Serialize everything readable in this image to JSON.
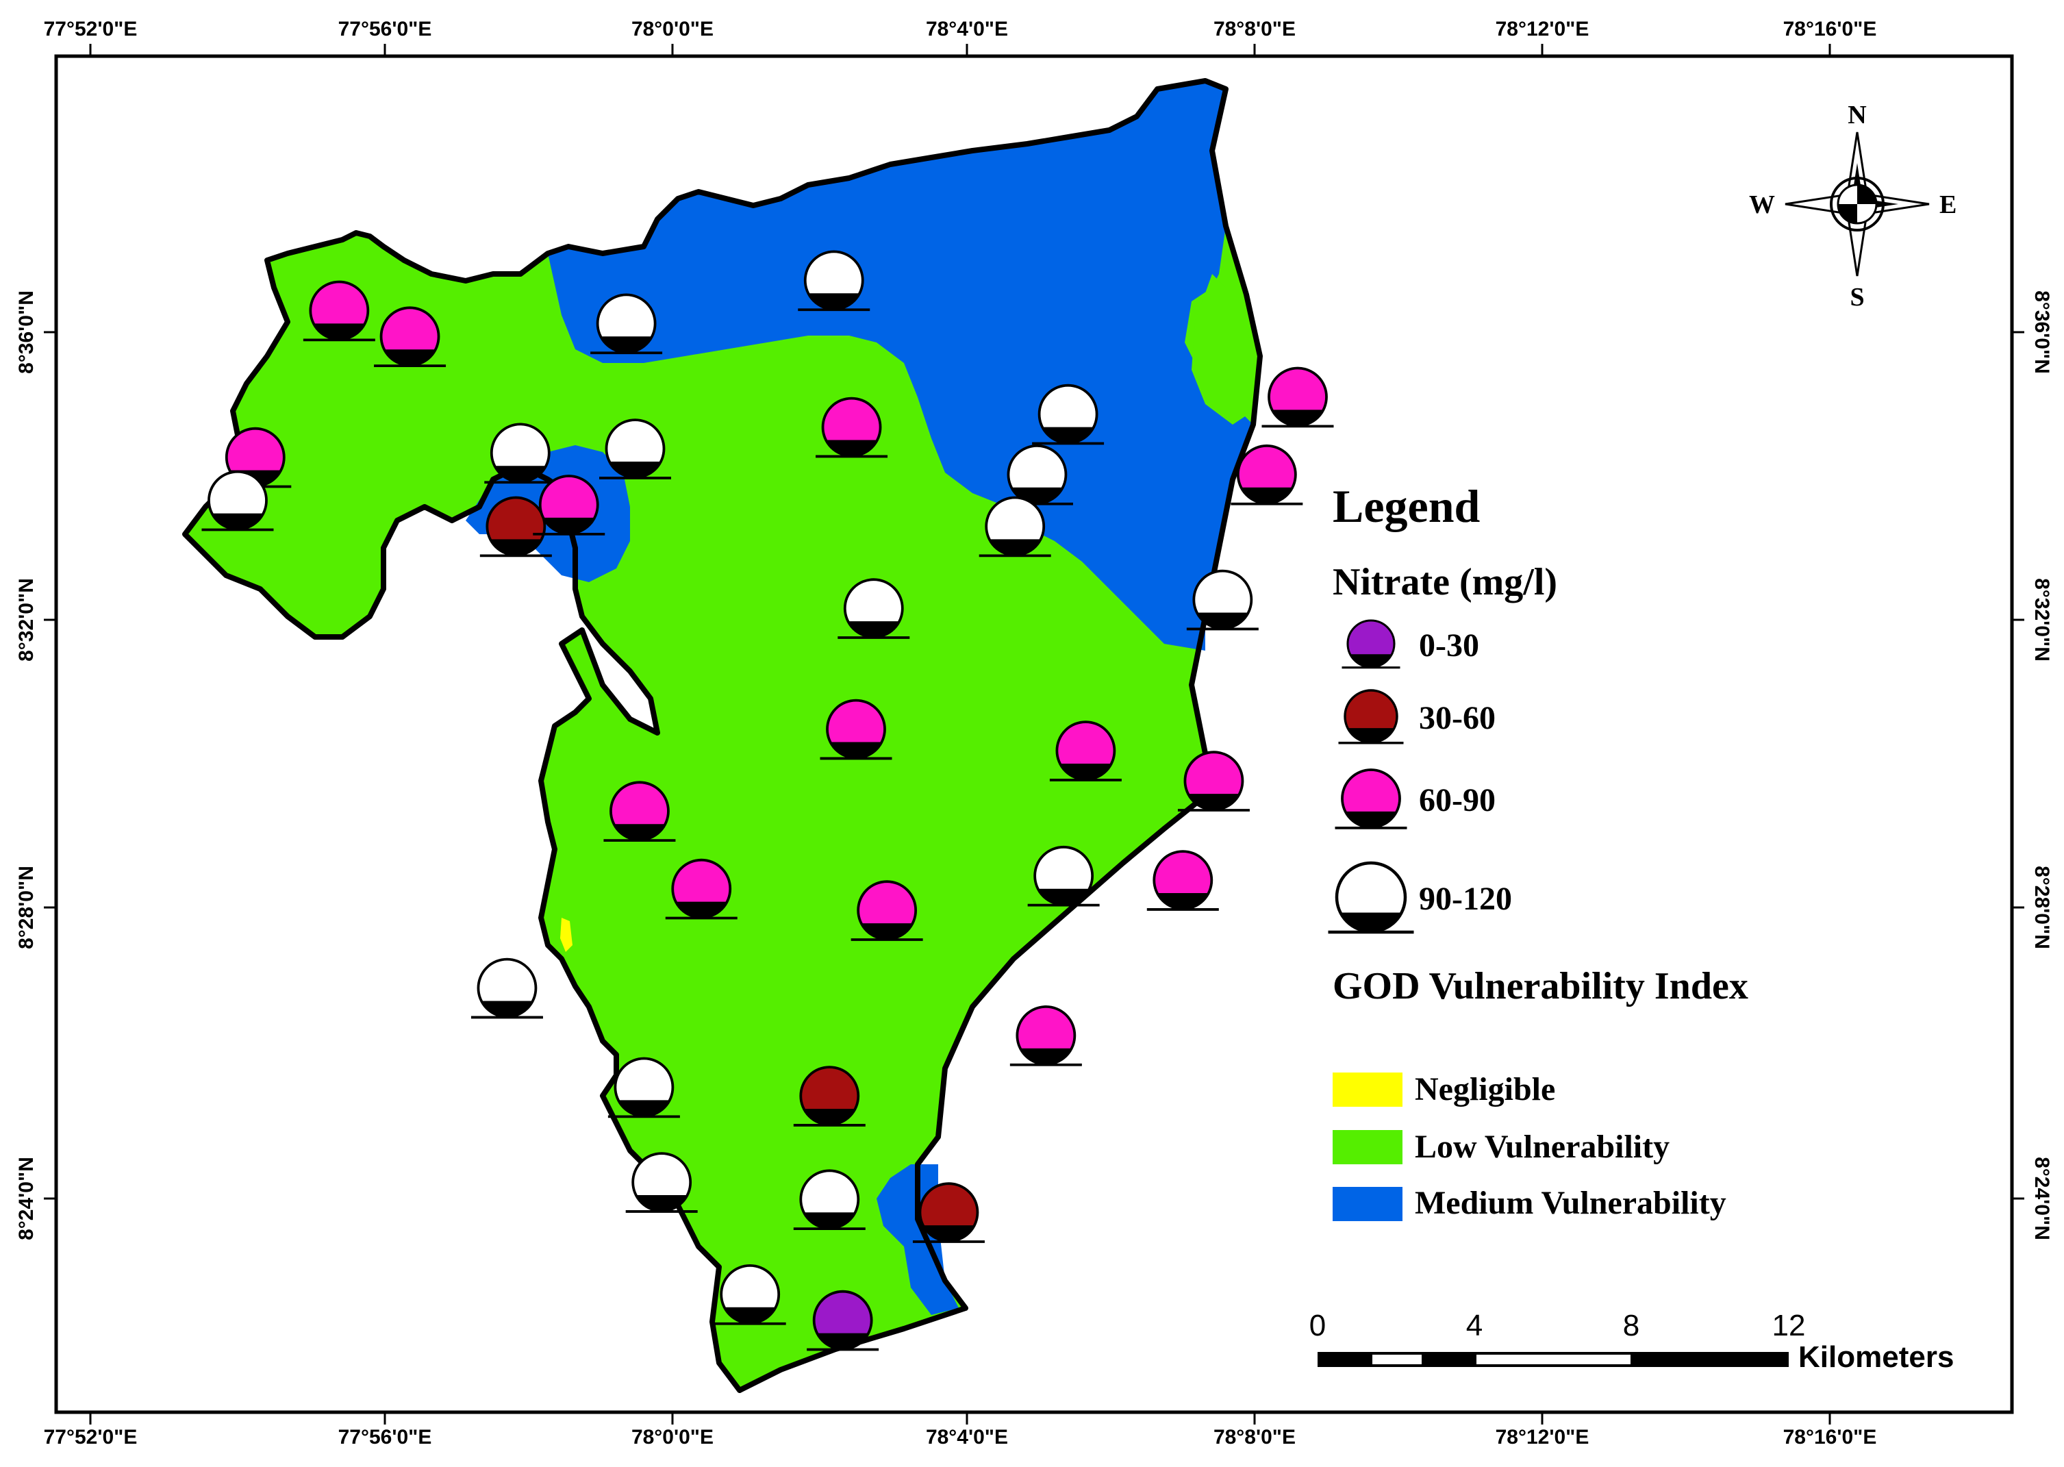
{
  "axes": {
    "top_labels": [
      "77°52'0\"E",
      "77°56'0\"E",
      "78°0'0\"E",
      "78°4'0\"E",
      "78°8'0\"E",
      "78°12'0\"E",
      "78°16'0\"E"
    ],
    "bottom_labels": [
      "77°52'0\"E",
      "77°56'0\"E",
      "78°0'0\"E",
      "78°4'0\"E",
      "78°8'0\"E",
      "78°12'0\"E",
      "78°16'0\"E"
    ],
    "left_labels": [
      "8°36'0\"N",
      "8°32'0\"N",
      "8°28'0\"N",
      "8°24'0\"N"
    ],
    "right_labels": [
      "8°36'0\"N",
      "8°32'0\"N",
      "8°28'0\"N",
      "8°24'0\"N"
    ]
  },
  "legend": {
    "title": "Legend",
    "nitrate_title": "Nitrate (mg/l)",
    "nitrate_classes": [
      {
        "label": "0-30",
        "color": "#9b19c9"
      },
      {
        "label": "30-60",
        "color": "#a50f0f"
      },
      {
        "label": "60-90",
        "color": "#ff14c8"
      },
      {
        "label": "90-120",
        "color": "#ffffff"
      }
    ],
    "god_title": "GOD Vulnerability Index",
    "god_classes": [
      {
        "label": "Negligible",
        "color": "#ffff00"
      },
      {
        "label": "Low Vulnerability",
        "color": "#55ee00"
      },
      {
        "label": "Medium Vulnerability",
        "color": "#0064e6"
      }
    ]
  },
  "scale_bar": {
    "ticks": [
      "0",
      "4",
      "8",
      "12"
    ],
    "unit": "Kilometers"
  },
  "compass": {
    "n": "N",
    "s": "S",
    "e": "E",
    "w": "W"
  },
  "sample_points": [
    {
      "cls": "60-90",
      "lon": 77.923,
      "lat": 8.605
    },
    {
      "cls": "60-90",
      "lon": 77.939,
      "lat": 8.599
    },
    {
      "cls": "90-120",
      "lon": 77.988,
      "lat": 8.602
    },
    {
      "cls": "90-120",
      "lon": 78.035,
      "lat": 8.612
    },
    {
      "cls": "60-90",
      "lon": 77.904,
      "lat": 8.571
    },
    {
      "cls": "90-120",
      "lon": 77.9,
      "lat": 8.561
    },
    {
      "cls": "90-120",
      "lon": 77.964,
      "lat": 8.572
    },
    {
      "cls": "90-120",
      "lon": 77.99,
      "lat": 8.573
    },
    {
      "cls": "30-60",
      "lon": 77.963,
      "lat": 8.555
    },
    {
      "cls": "60-90",
      "lon": 77.975,
      "lat": 8.56
    },
    {
      "cls": "60-90",
      "lon": 78.039,
      "lat": 8.578
    },
    {
      "cls": "90-120",
      "lon": 78.088,
      "lat": 8.581
    },
    {
      "cls": "90-120",
      "lon": 78.081,
      "lat": 8.567
    },
    {
      "cls": "90-120",
      "lon": 78.076,
      "lat": 8.555
    },
    {
      "cls": "60-90",
      "lon": 78.133,
      "lat": 8.567
    },
    {
      "cls": "60-90",
      "lon": 78.14,
      "lat": 8.585
    },
    {
      "cls": "90-120",
      "lon": 78.123,
      "lat": 8.538
    },
    {
      "cls": "90-120",
      "lon": 78.044,
      "lat": 8.536
    },
    {
      "cls": "60-90",
      "lon": 78.04,
      "lat": 8.508
    },
    {
      "cls": "60-90",
      "lon": 78.092,
      "lat": 8.503
    },
    {
      "cls": "60-90",
      "lon": 78.121,
      "lat": 8.496
    },
    {
      "cls": "60-90",
      "lon": 77.991,
      "lat": 8.489
    },
    {
      "cls": "60-90",
      "lon": 78.005,
      "lat": 8.471
    },
    {
      "cls": "60-90",
      "lon": 78.047,
      "lat": 8.466
    },
    {
      "cls": "90-120",
      "lon": 78.087,
      "lat": 8.474
    },
    {
      "cls": "60-90",
      "lon": 78.114,
      "lat": 8.473
    },
    {
      "cls": "90-120",
      "lon": 77.961,
      "lat": 8.448
    },
    {
      "cls": "60-90",
      "lon": 78.083,
      "lat": 8.437
    },
    {
      "cls": "90-120",
      "lon": 77.992,
      "lat": 8.425
    },
    {
      "cls": "30-60",
      "lon": 78.034,
      "lat": 8.423
    },
    {
      "cls": "90-120",
      "lon": 77.996,
      "lat": 8.403
    },
    {
      "cls": "90-120",
      "lon": 78.034,
      "lat": 8.399
    },
    {
      "cls": "30-60",
      "lon": 78.061,
      "lat": 8.396
    },
    {
      "cls": "90-120",
      "lon": 78.016,
      "lat": 8.377
    },
    {
      "cls": "0-30",
      "lon": 78.037,
      "lat": 8.371
    }
  ]
}
